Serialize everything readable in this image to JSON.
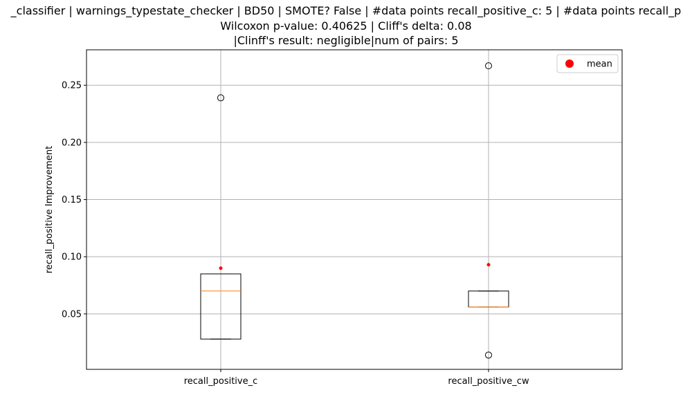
{
  "chart_data": {
    "type": "box",
    "title_lines": [
      "_classifier | warnings_typestate_checker | BD50 | SMOTE? False | #data points recall_positive_c: 5 | #data points recall_p",
      "Wilcoxon p-value: 0.40625 | Cliff's delta: 0.08",
      "|Clinff's result: negligible|num of pairs: 5"
    ],
    "ylabel": "recall_positive Improvement",
    "xlabel": "",
    "ylim": [
      0.0015,
      0.281
    ],
    "yticks": [
      0.05,
      0.1,
      0.15,
      0.2,
      0.25
    ],
    "ytick_labels": [
      "0.05",
      "0.10",
      "0.15",
      "0.20",
      "0.25"
    ],
    "grid": true,
    "legend": {
      "position": "top-right",
      "entries": [
        {
          "label": "mean",
          "color": "#ff0000"
        }
      ]
    },
    "colors": {
      "box": "#000000",
      "median": "#ff7f0e",
      "mean": "#ff0000",
      "grid": "#b0b0b0"
    },
    "categories": [
      "recall_positive_c",
      "recall_positive_cw"
    ],
    "boxes": [
      {
        "label": "recall_positive_c",
        "q1": 0.028,
        "median": 0.07,
        "q3": 0.085,
        "whisker_low": 0.028,
        "whisker_high": 0.085,
        "mean": 0.09,
        "outliers": [
          0.239
        ]
      },
      {
        "label": "recall_positive_cw",
        "q1": 0.056,
        "median": 0.056,
        "q3": 0.07,
        "whisker_low": 0.056,
        "whisker_high": 0.07,
        "mean": 0.093,
        "outliers": [
          0.014,
          0.267
        ]
      }
    ]
  }
}
